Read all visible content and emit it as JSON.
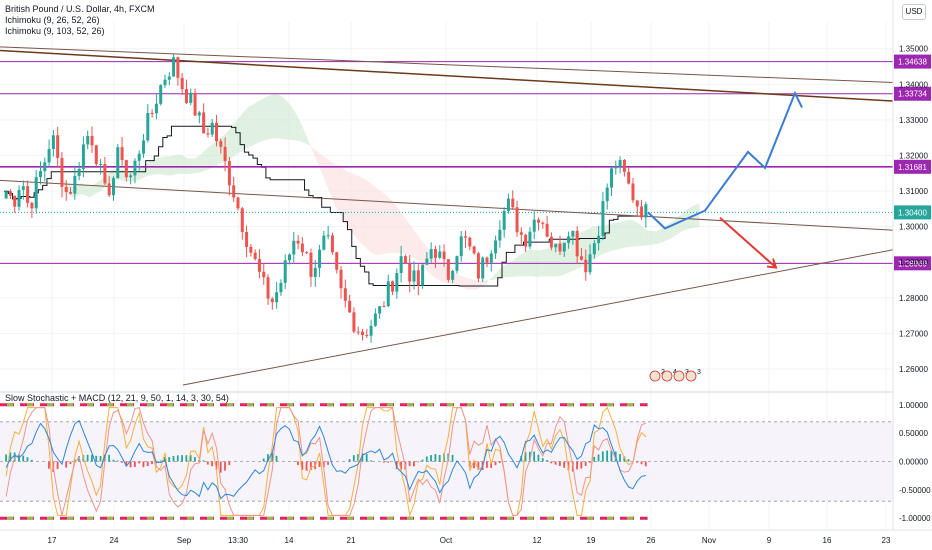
{
  "legend": {
    "symbol": "British Pound / U.S. Dollar, 4h, FXCM",
    "ichimoku1": "Ichimoku (9, 26, 52, 26)",
    "ichimoku2": "Ichimoku (9, 103, 52, 26)"
  },
  "currency_button": "USD",
  "sub_legend": "Slow Stochastic + MACD (12, 21, 9, 50, 1, 14, 3, 30, 54)",
  "event_badges": [
    "2",
    "4",
    "3",
    "3"
  ],
  "colors": {
    "up": "#26a69a",
    "down": "#ef5350",
    "hline": "#9c27b0",
    "trend": "#795548",
    "trend_dark": "#6b3a1a",
    "proj_up": "#3a7bd5",
    "proj_down": "#e53935",
    "ichi_line": "#131722",
    "cloud_green": "#c8e6c9",
    "cloud_red": "#fbd9d9",
    "current": "#26a69a"
  },
  "chart_data": [
    {
      "type": "candlestick",
      "title": "British Pound / U.S. Dollar, 4h, FXCM",
      "ylim": [
        1.2555,
        1.3575
      ],
      "y_ticks": [
        "1.35000",
        "1.34000",
        "1.33000",
        "1.32000",
        "1.31000",
        "1.30000",
        "1.29000",
        "1.28000",
        "1.27000",
        "1.26000"
      ],
      "x_ticks": [
        "17",
        "24",
        "Sep",
        "13:30",
        "14",
        "21",
        "Oct",
        "12",
        "19",
        "26",
        "Nov",
        "9",
        "16",
        "23"
      ],
      "horizontal_levels": [
        {
          "value": "1.34638",
          "level": 1.34638
        },
        {
          "value": "1.33734",
          "level": 1.33734
        },
        {
          "value": "1.31681",
          "level": 1.31681
        },
        {
          "value": "1.28969",
          "level": 1.28969
        }
      ],
      "current_price": "1.30400",
      "price_path": [
        1.31,
        1.307,
        1.314,
        1.305,
        1.312,
        1.318,
        1.326,
        1.316,
        1.309,
        1.313,
        1.322,
        1.327,
        1.319,
        1.309,
        1.313,
        1.323,
        1.312,
        1.318,
        1.326,
        1.331,
        1.338,
        1.343,
        1.346,
        1.34,
        1.336,
        1.332,
        1.326,
        1.329,
        1.322,
        1.316,
        1.309,
        1.301,
        1.294,
        1.288,
        1.282,
        1.279,
        1.284,
        1.291,
        1.298,
        1.294,
        1.288,
        1.291,
        1.297,
        1.289,
        1.281,
        1.276,
        1.272,
        1.27,
        1.273,
        1.276,
        1.281,
        1.286,
        1.292,
        1.287,
        1.283,
        1.289,
        1.295,
        1.291,
        1.286,
        1.293,
        1.297,
        1.293,
        1.287,
        1.291,
        1.297,
        1.303,
        1.306,
        1.301,
        1.296,
        1.301,
        1.304,
        1.299,
        1.293,
        1.296,
        1.301,
        1.294,
        1.289,
        1.294,
        1.302,
        1.312,
        1.318,
        1.315,
        1.31,
        1.306,
        1.304
      ],
      "projection_up": [
        1.304,
        1.2995,
        1.3045,
        1.321,
        1.3165,
        1.3375,
        1.3335
      ],
      "projection_down": [
        1.3025,
        1.2885
      ],
      "oscillator": {
        "ylim": [
          -1.12,
          1.12
        ],
        "y_ticks": [
          "1.00000",
          "0.50000",
          "0.00000",
          "-0.50000",
          "-1.00000"
        ],
        "bands": [
          1.0,
          0.7,
          0.0,
          -0.7,
          -1.0
        ]
      }
    }
  ]
}
